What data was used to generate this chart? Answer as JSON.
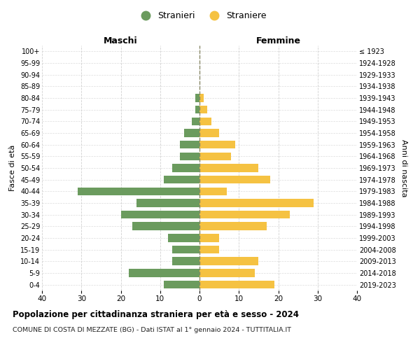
{
  "age_groups": [
    "100+",
    "95-99",
    "90-94",
    "85-89",
    "80-84",
    "75-79",
    "70-74",
    "65-69",
    "60-64",
    "55-59",
    "50-54",
    "45-49",
    "40-44",
    "35-39",
    "30-34",
    "25-29",
    "20-24",
    "15-19",
    "10-14",
    "5-9",
    "0-4"
  ],
  "birth_years": [
    "≤ 1923",
    "1924-1928",
    "1929-1933",
    "1934-1938",
    "1939-1943",
    "1944-1948",
    "1949-1953",
    "1954-1958",
    "1959-1963",
    "1964-1968",
    "1969-1973",
    "1974-1978",
    "1979-1983",
    "1984-1988",
    "1989-1993",
    "1994-1998",
    "1999-2003",
    "2004-2008",
    "2009-2013",
    "2014-2018",
    "2019-2023"
  ],
  "maschi": [
    0,
    0,
    0,
    0,
    1,
    1,
    2,
    4,
    5,
    5,
    7,
    9,
    31,
    16,
    20,
    17,
    8,
    7,
    7,
    18,
    9
  ],
  "femmine": [
    0,
    0,
    0,
    0,
    1,
    2,
    3,
    5,
    9,
    8,
    15,
    18,
    7,
    29,
    23,
    17,
    5,
    5,
    15,
    14,
    19
  ],
  "maschi_color": "#6b9b5e",
  "femmine_color": "#f5c242",
  "background_color": "#ffffff",
  "grid_color": "#cccccc",
  "zero_line_color": "#888866",
  "title": "Popolazione per cittadinanza straniera per età e sesso - 2024",
  "subtitle": "COMUNE DI COSTA DI MEZZATE (BG) - Dati ISTAT al 1° gennaio 2024 - TUTTITALIA.IT",
  "left_header": "Maschi",
  "right_header": "Femmine",
  "left_ylabel": "Fasce di età",
  "right_ylabel": "Anni di nascita",
  "legend_maschi": "Stranieri",
  "legend_femmine": "Straniere",
  "xlim": 40
}
